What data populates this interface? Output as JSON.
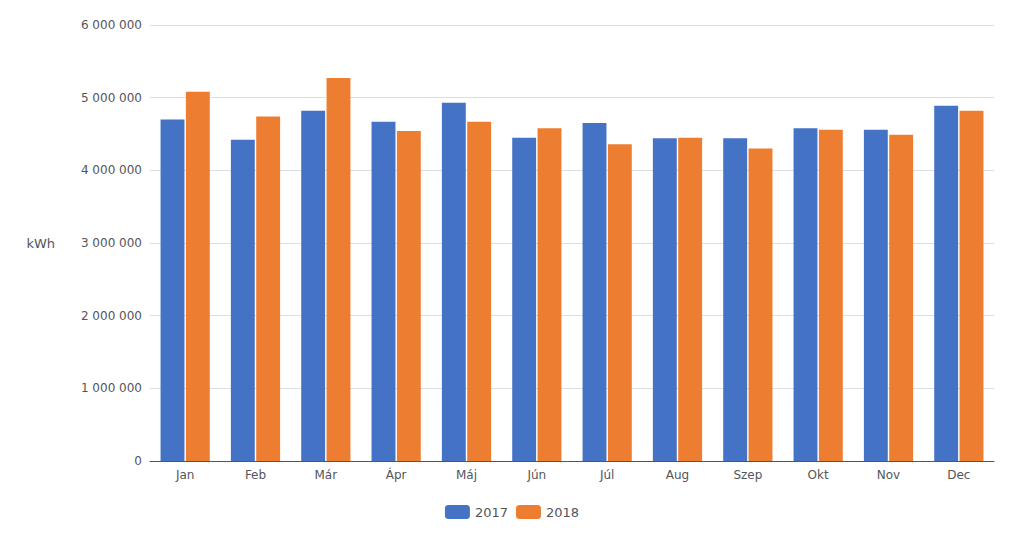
{
  "chart_data": {
    "type": "bar",
    "categories": [
      "Jan",
      "Feb",
      "Már",
      "Ápr",
      "Máj",
      "Jún",
      "Júl",
      "Aug",
      "Szep",
      "Okt",
      "Nov",
      "Dec"
    ],
    "series": [
      {
        "name": "2017",
        "color": "#4472C4",
        "values": [
          4700000,
          4420000,
          4820000,
          4670000,
          4930000,
          4450000,
          4650000,
          4440000,
          4440000,
          4580000,
          4560000,
          4890000
        ]
      },
      {
        "name": "2018",
        "color": "#ED7D31",
        "values": [
          5080000,
          4740000,
          5270000,
          4540000,
          4670000,
          4580000,
          4360000,
          4450000,
          4300000,
          4560000,
          4490000,
          4820000
        ]
      }
    ],
    "ylabel": "kWh",
    "ylim": [
      0,
      6000000
    ],
    "yticks": [
      0,
      {
        "value": 1000000,
        "label": "1 000 000"
      },
      {
        "value": 2000000,
        "label": "2 000 000"
      },
      {
        "value": 3000000,
        "label": "3 000 000"
      },
      {
        "value": 4000000,
        "label": "4 000 000"
      },
      {
        "value": 5000000,
        "label": "5 000 000"
      },
      {
        "value": 6000000,
        "label": "6 000 000"
      }
    ],
    "grid": true,
    "legend": "bottom"
  }
}
